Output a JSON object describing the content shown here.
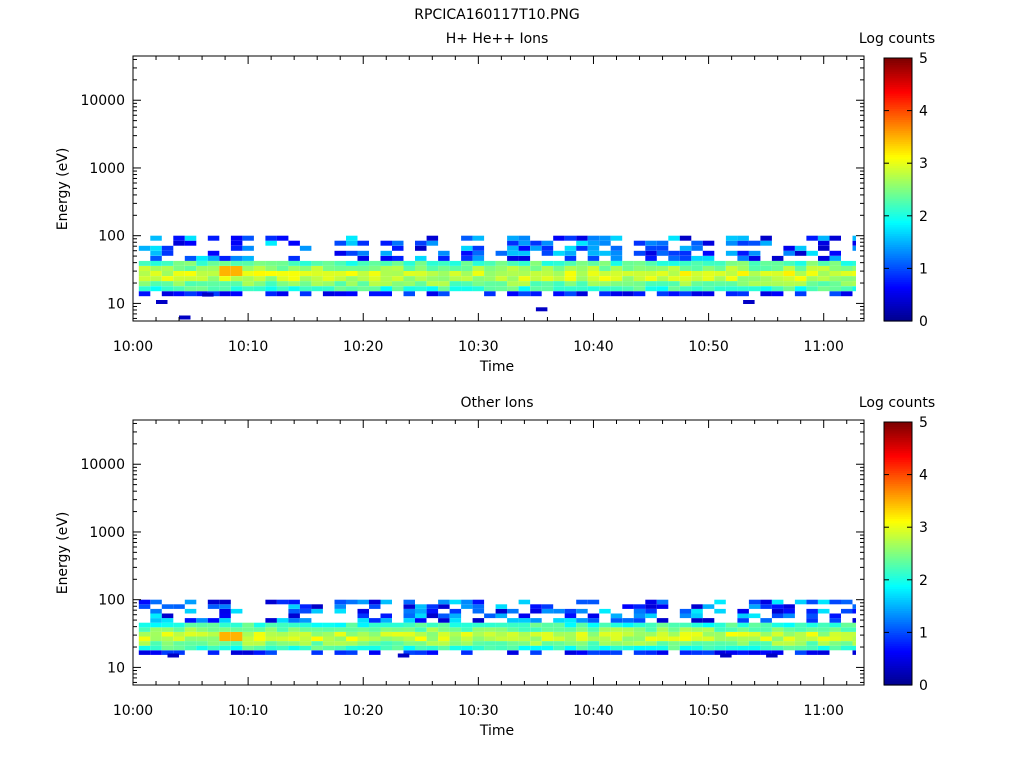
{
  "figure_title": "RPCICA160117T10.PNG",
  "colors": {
    "background": "#ffffff",
    "colormap": [
      "#00008f",
      "#0000ff",
      "#0080ff",
      "#00ffff",
      "#80ff80",
      "#ffff00",
      "#ff8000",
      "#ff0000",
      "#800000"
    ]
  },
  "chart_data": [
    {
      "type": "heatmap",
      "title": "H+ He++ Ions",
      "xlabel": "Time",
      "ylabel": "Energy (eV)",
      "colorbar_label": "Log counts",
      "colorbar_ticks": [
        "0",
        "1",
        "2",
        "3",
        "4",
        "5"
      ],
      "clim": [
        0,
        5
      ],
      "x_ticks": [
        "10:00",
        "10:10",
        "10:20",
        "10:30",
        "10:40",
        "10:50",
        "11:00"
      ],
      "x_range_minutes": [
        0,
        63.5
      ],
      "y_ticks": [
        "10",
        "100",
        "1000",
        "10000"
      ],
      "y_scale": "log",
      "y_range": [
        5.5,
        45000
      ],
      "grid": false,
      "data_extent_minutes": [
        0.5,
        62.8
      ],
      "data_energy_range_eV": [
        6,
        100
      ],
      "dominant_band": {
        "energy_eV": [
          15,
          45
        ],
        "log_counts": [
          2,
          3
        ]
      },
      "peak": {
        "time": "10:08",
        "energy_eV": 30,
        "log_counts": 3.5
      },
      "sparse_points": [
        {
          "time": "10:02",
          "energy_eV": 10.5,
          "log_counts": 0.3
        },
        {
          "time": "10:04",
          "energy_eV": 6.2,
          "log_counts": 0.3
        },
        {
          "time": "10:06",
          "energy_eV": 13.5,
          "log_counts": 0.3
        },
        {
          "time": "10:35",
          "energy_eV": 8.2,
          "log_counts": 0.3
        },
        {
          "time": "10:53",
          "energy_eV": 10.5,
          "log_counts": 0.3
        }
      ]
    },
    {
      "type": "heatmap",
      "title": "Other Ions",
      "xlabel": "Time",
      "ylabel": "Energy (eV)",
      "colorbar_label": "Log counts",
      "colorbar_ticks": [
        "0",
        "1",
        "2",
        "3",
        "4",
        "5"
      ],
      "clim": [
        0,
        5
      ],
      "x_ticks": [
        "10:00",
        "10:10",
        "10:20",
        "10:30",
        "10:40",
        "10:50",
        "11:00"
      ],
      "x_range_minutes": [
        0,
        63.5
      ],
      "y_ticks": [
        "10",
        "100",
        "1000",
        "10000"
      ],
      "y_scale": "log",
      "y_range": [
        5.5,
        45000
      ],
      "grid": false,
      "data_extent_minutes": [
        0.5,
        62.8
      ],
      "data_energy_range_eV": [
        13,
        100
      ],
      "dominant_band": {
        "energy_eV": [
          18,
          45
        ],
        "log_counts": [
          2,
          3
        ]
      },
      "peak": {
        "time": "10:08",
        "energy_eV": 30,
        "log_counts": 3.5
      },
      "sparse_points": [
        {
          "time": "10:03",
          "energy_eV": 15,
          "log_counts": 0.3
        },
        {
          "time": "10:23",
          "energy_eV": 15,
          "log_counts": 0.3
        },
        {
          "time": "10:51",
          "energy_eV": 15,
          "log_counts": 0.3
        },
        {
          "time": "10:55",
          "energy_eV": 15,
          "log_counts": 0.3
        }
      ]
    }
  ]
}
